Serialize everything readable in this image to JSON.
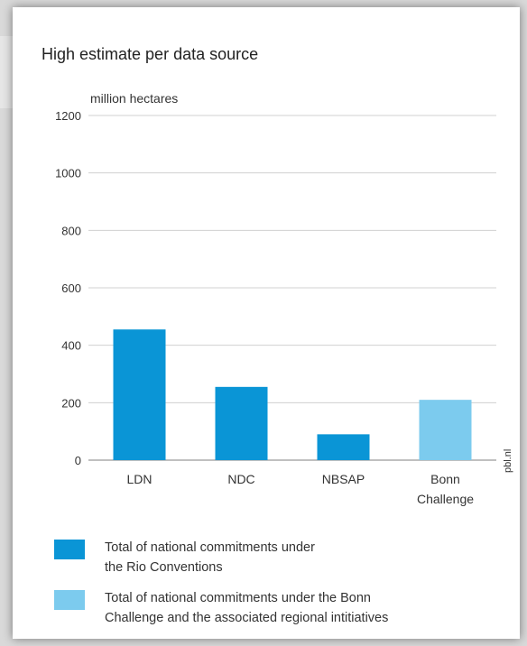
{
  "chart_data": {
    "type": "bar",
    "title": "High estimate per data source",
    "ylabel": "million hectares",
    "xlabel": "",
    "categories": [
      "LDN",
      "NDC",
      "NBSAP",
      "Bonn Challenge"
    ],
    "category_lines": [
      [
        "LDN"
      ],
      [
        "NDC"
      ],
      [
        "NBSAP"
      ],
      [
        "Bonn",
        "Challenge"
      ]
    ],
    "values": [
      455,
      255,
      90,
      210
    ],
    "bar_colors": [
      "#0a95d6",
      "#0a95d6",
      "#0a95d6",
      "#7ccbee"
    ],
    "ylim": [
      0,
      1200
    ],
    "yticks": [
      0,
      200,
      400,
      600,
      800,
      1000,
      1200
    ],
    "grid": true,
    "watermark": "pbl.nl",
    "legend": [
      {
        "color": "#0a95d6",
        "lines": [
          "Total of national commitments under",
          "the Rio Conventions"
        ]
      },
      {
        "color": "#7ccbee",
        "lines": [
          "Total of national commitments under the Bonn",
          "Challenge and the associated regional intitiatives"
        ]
      }
    ]
  }
}
